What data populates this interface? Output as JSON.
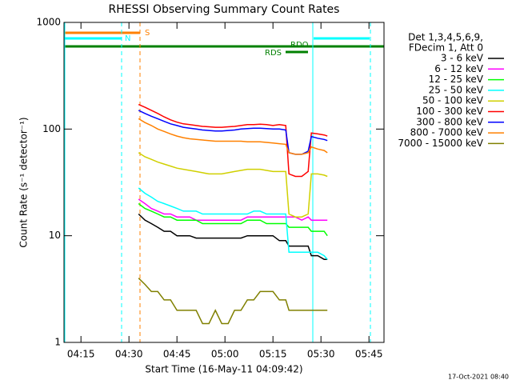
{
  "chart_data": {
    "type": "line",
    "title": "RHESSI Observing Summary Count Rates",
    "xlabel": "Start Time (16-May-11 04:09:42)",
    "ylabel": "Count Rate (s⁻¹ detector⁻¹)",
    "log_y": true,
    "xlim": [
      "04:09:42",
      "05:49:42"
    ],
    "xticks": [
      "04:15",
      "04:30",
      "04:45",
      "05:00",
      "05:15",
      "05:30",
      "05:45"
    ],
    "ylim": [
      1,
      1000
    ],
    "yticks": [
      1,
      10,
      100,
      1000
    ],
    "legend_header": [
      "Det 1,3,4,5,6,9,",
      "FDecim 1, Att 0"
    ],
    "legend_position": "right",
    "annotations": [
      "S",
      "N",
      "RDO",
      "RDS"
    ],
    "timestamp": "17-Oct-2021 08:40",
    "x": [
      "04:33",
      "04:35",
      "04:37",
      "04:39",
      "04:41",
      "04:43",
      "04:45",
      "04:47",
      "04:49",
      "04:51",
      "04:53",
      "04:55",
      "04:57",
      "04:59",
      "05:01",
      "05:03",
      "05:05",
      "05:07",
      "05:09",
      "05:11",
      "05:13",
      "05:15",
      "05:17",
      "05:19",
      "05:20",
      "05:22",
      "05:24",
      "05:26",
      "05:27",
      "05:29",
      "05:31",
      "05:32"
    ],
    "series": [
      {
        "name": "3 - 6 keV",
        "color": "#000000",
        "values": [
          16,
          14,
          13,
          12,
          11,
          11,
          10,
          10,
          10,
          9.5,
          9.5,
          9.5,
          9.5,
          9.5,
          9.5,
          9.5,
          9.5,
          10,
          10,
          10,
          10,
          10,
          9,
          9,
          8,
          8,
          8,
          8,
          6.5,
          6.5,
          6,
          6
        ]
      },
      {
        "name": "6 - 12 keV",
        "color": "#ff00ff",
        "values": [
          22,
          20,
          18,
          17,
          16,
          16,
          15,
          15,
          15,
          14,
          14,
          14,
          14,
          14,
          14,
          14,
          14,
          15,
          15,
          15,
          15,
          15,
          15,
          15,
          15,
          15,
          14,
          15,
          14,
          14,
          14,
          14
        ]
      },
      {
        "name": "12 - 25 keV",
        "color": "#00ff00",
        "values": [
          20,
          18,
          17,
          16,
          15,
          15,
          14,
          14,
          14,
          14,
          13,
          13,
          13,
          13,
          13,
          13,
          13,
          14,
          14,
          14,
          13,
          13,
          13,
          13,
          12,
          12,
          12,
          12,
          11,
          11,
          11,
          10
        ]
      },
      {
        "name": "25 - 50 keV",
        "color": "#00ffff",
        "values": [
          28,
          25,
          23,
          21,
          20,
          19,
          18,
          17,
          17,
          17,
          16,
          16,
          16,
          16,
          16,
          16,
          16,
          16,
          17,
          17,
          16,
          16,
          16,
          16,
          7,
          7,
          7,
          7,
          7,
          7,
          6.5,
          6
        ]
      },
      {
        "name": "50 - 100 keV",
        "color": "#d0d000",
        "values": [
          60,
          55,
          52,
          49,
          47,
          45,
          43,
          42,
          41,
          40,
          39,
          38,
          38,
          38,
          39,
          40,
          41,
          42,
          42,
          42,
          41,
          40,
          40,
          40,
          16,
          15,
          15,
          16,
          38,
          38,
          37,
          36
        ]
      },
      {
        "name": "100 - 300 keV",
        "color": "#ff0000",
        "values": [
          170,
          160,
          150,
          140,
          130,
          122,
          116,
          112,
          110,
          108,
          106,
          105,
          104,
          104,
          105,
          106,
          108,
          110,
          110,
          111,
          110,
          108,
          110,
          108,
          38,
          36,
          36,
          40,
          92,
          90,
          88,
          86
        ]
      },
      {
        "name": "300 - 800 keV",
        "color": "#0000ff",
        "values": [
          150,
          140,
          132,
          125,
          118,
          112,
          108,
          104,
          102,
          100,
          98,
          97,
          96,
          96,
          97,
          98,
          100,
          101,
          102,
          102,
          101,
          100,
          100,
          98,
          60,
          58,
          58,
          62,
          85,
          82,
          80,
          78
        ]
      },
      {
        "name": "800 - 7000 keV",
        "color": "#ff8000",
        "values": [
          125,
          115,
          108,
          100,
          95,
          90,
          86,
          83,
          81,
          80,
          79,
          78,
          77,
          77,
          77,
          77,
          77,
          76,
          76,
          76,
          75,
          74,
          73,
          72,
          60,
          58,
          58,
          60,
          68,
          65,
          63,
          60
        ]
      },
      {
        "name": "7000 - 15000 keV",
        "color": "#808000",
        "values": [
          4,
          3.5,
          3,
          3,
          2.5,
          2.5,
          2,
          2,
          2,
          2,
          1.5,
          1.5,
          2,
          1.5,
          1.5,
          2,
          2,
          2.5,
          2.5,
          3,
          3,
          3,
          2.5,
          2.5,
          2,
          2,
          2,
          2,
          2,
          2,
          2,
          2
        ]
      }
    ]
  }
}
